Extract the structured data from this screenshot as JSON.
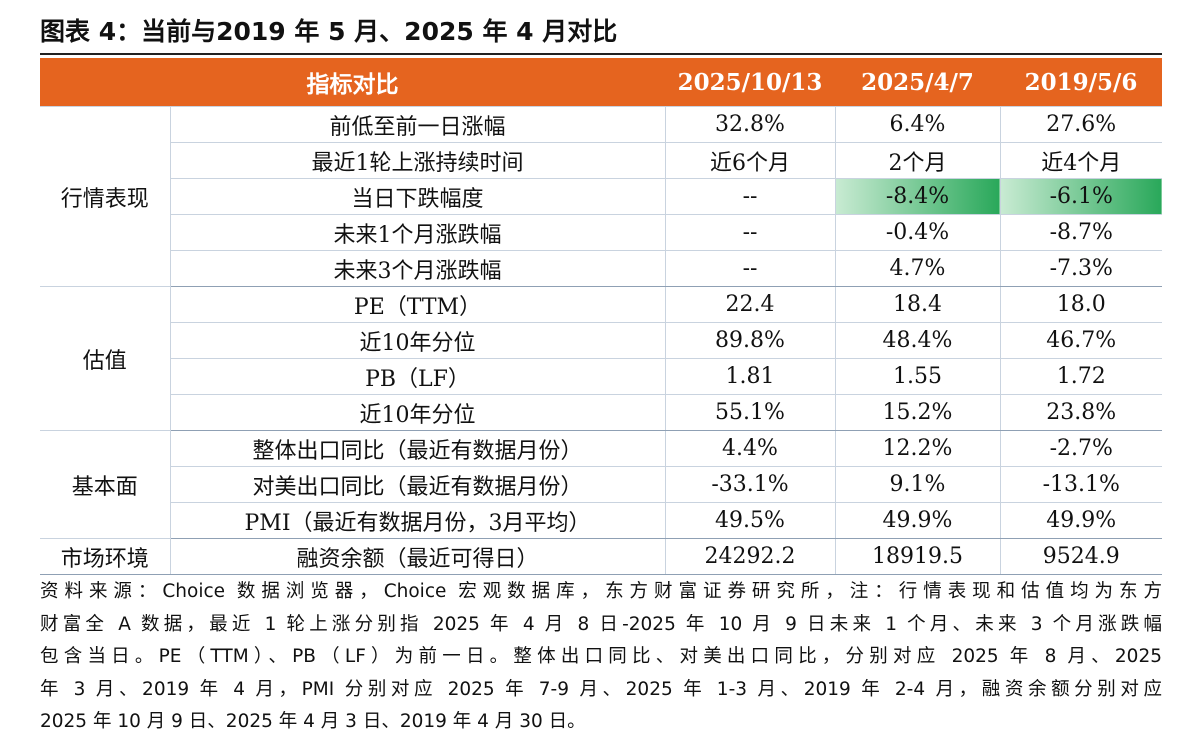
{
  "title": "图表 4：当前与2019 年 5 月、2025 年 4 月对比",
  "table": {
    "header": [
      "指标对比",
      "2025/10/13",
      "2025/4/7",
      "2019/5/6"
    ],
    "groups": [
      {
        "name": "行情表现",
        "rows": [
          [
            "前低至前一日涨幅",
            "32.8%",
            "6.4%",
            "27.6%"
          ],
          [
            "最近1轮上涨持续时间",
            "近6个月",
            "2个月",
            "近4个月"
          ],
          [
            "当日下跌幅度",
            "--",
            "-8.4%",
            "-6.1%"
          ],
          [
            "未来1个月涨跌幅",
            "--",
            "-0.4%",
            "-8.7%"
          ],
          [
            "未来3个月涨跌幅",
            "--",
            "4.7%",
            "-7.3%"
          ]
        ]
      },
      {
        "name": "估值",
        "rows": [
          [
            "PE（TTM）",
            "22.4",
            "18.4",
            "18.0"
          ],
          [
            "近10年分位",
            "89.8%",
            "48.4%",
            "46.7%"
          ],
          [
            "PB（LF）",
            "1.81",
            "1.55",
            "1.72"
          ],
          [
            "近10年分位",
            "55.1%",
            "15.2%",
            "23.8%"
          ]
        ]
      },
      {
        "name": "基本面",
        "rows": [
          [
            "整体出口同比（最近有数据月份）",
            "4.4%",
            "12.2%",
            "-2.7%"
          ],
          [
            "对美出口同比（最近有数据月份）",
            "-33.1%",
            "9.1%",
            "-13.1%"
          ],
          [
            "PMI（最近有数据月份，3月平均）",
            "49.5%",
            "49.9%",
            "49.9%"
          ]
        ]
      },
      {
        "name": "市场环境",
        "rows": [
          [
            "融资余额（最近可得日）",
            "24292.2",
            "18919.5",
            "9524.9"
          ]
        ]
      }
    ]
  },
  "footnote": [
    "资料来源：Choice 数据浏览器，Choice 宏观数据库，东方财富证券研究所，注：行情表现和估值均为东方",
    "财富全 A 数据，最近 1 轮上涨分别指 2025 年 4 月 8 日-2025 年 10 月 9 日未来 1 个月、未来 3 个月涨跌幅",
    "包含当日。PE（TTM）、PB（LF）为前一日。整体出口同比、对美出口同比，分别对应 2025 年 8 月、2025",
    "年 3 月、2019 年 4 月，PMI 分别对应 2025 年 7-9 月、2025 年 1-3 月、2019 年 2-4 月，融资余额分别对应",
    "2025 年 10 月 9 日、2025 年 4 月 3 日、2019 年 4 月 30 日。"
  ]
}
